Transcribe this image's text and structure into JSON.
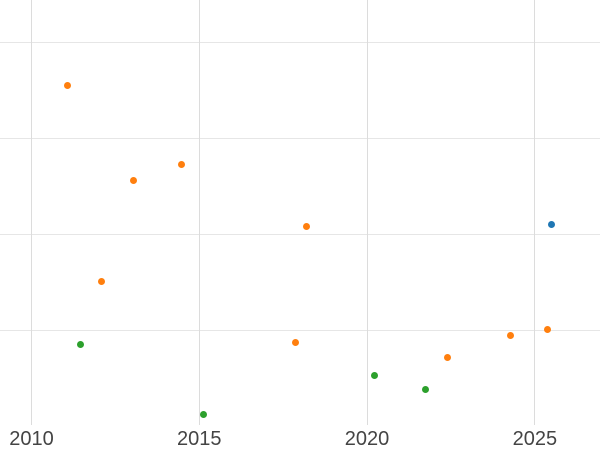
{
  "chart_data": {
    "type": "scatter",
    "title": "",
    "xlabel": "",
    "ylabel": "",
    "grid": true,
    "legend_position": "none",
    "y_axis_labels_visible": false,
    "x_tick_labels": [
      "2010",
      "2015",
      "2020",
      "2025"
    ],
    "x_tick_values": [
      2010,
      2015,
      2020,
      2025
    ],
    "xlim": [
      2009.061,
      2026.942
    ],
    "ylim": [
      0,
      4.447
    ],
    "y_gridline_values": [
      1,
      2,
      3,
      4
    ],
    "note": "y values are in relative gridline units; y-axis tick labels are cropped out of the screenshot",
    "series": [
      {
        "name": "orange",
        "color": "#ff7f0e",
        "points": [
          {
            "x": 2011.06,
            "y": 3.56
          },
          {
            "x": 2012.09,
            "y": 1.51
          },
          {
            "x": 2013.03,
            "y": 2.56
          },
          {
            "x": 2014.48,
            "y": 2.73
          },
          {
            "x": 2017.88,
            "y": 0.88
          },
          {
            "x": 2018.19,
            "y": 2.09
          },
          {
            "x": 2022.39,
            "y": 0.72
          },
          {
            "x": 2024.28,
            "y": 0.95
          },
          {
            "x": 2025.37,
            "y": 1.01
          }
        ]
      },
      {
        "name": "green",
        "color": "#2ca02c",
        "points": [
          {
            "x": 2011.45,
            "y": 0.85
          },
          {
            "x": 2015.12,
            "y": 0.13
          },
          {
            "x": 2020.21,
            "y": 0.53
          },
          {
            "x": 2021.73,
            "y": 0.39
          }
        ]
      },
      {
        "name": "blue",
        "color": "#1f77b4",
        "points": [
          {
            "x": 2025.49,
            "y": 2.11
          }
        ]
      }
    ],
    "colors": {
      "background": "#ffffff",
      "gridline_horizontal": "#e6e6e6",
      "gridline_vertical": "#dcdcdc",
      "tick_label": "#444444"
    }
  }
}
